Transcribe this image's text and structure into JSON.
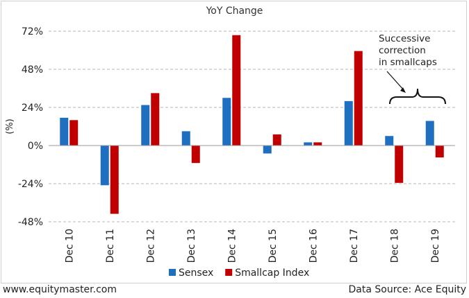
{
  "chart_data": {
    "type": "bar",
    "title": "YoY Change",
    "ylabel": "(%)",
    "categories": [
      "Dec 10",
      "Dec 11",
      "Dec 12",
      "Dec 13",
      "Dec 14",
      "Dec 15",
      "Dec 16",
      "Dec 17",
      "Dec 18",
      "Dec 19"
    ],
    "series": [
      {
        "name": "Sensex",
        "color": "#1f6fc1",
        "values": [
          17.5,
          -25,
          25.5,
          9,
          30,
          -5,
          2,
          28,
          6,
          15.5
        ]
      },
      {
        "name": "Smallcap Index",
        "color": "#c00000",
        "values": [
          16,
          -43,
          33,
          -11,
          69.5,
          7,
          2,
          59.5,
          -23.5,
          -7.5
        ]
      }
    ],
    "ylim": [
      -48,
      72
    ],
    "yticks": [
      -48,
      -24,
      0,
      24,
      48,
      72
    ],
    "ytick_labels": [
      "-48%",
      "-24%",
      "0%",
      "24%",
      "48%",
      "72%"
    ],
    "grid": true,
    "legend_position": "bottom",
    "annotation": "Successive correction in smallcaps"
  },
  "footer": {
    "website": "www.equitymaster.com",
    "source": "Data Source: Ace Equity"
  }
}
